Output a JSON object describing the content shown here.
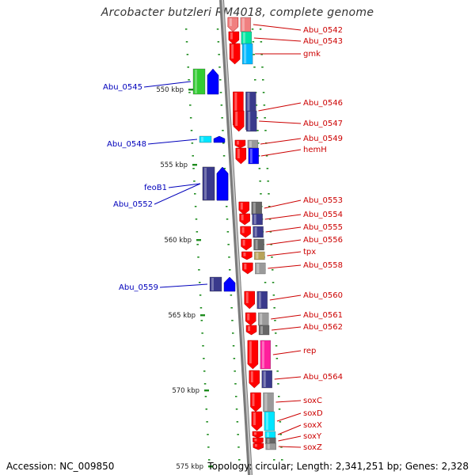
{
  "title": "Arcobacter butzleri RM4018, complete genome",
  "accession": "Accession: NC_009850",
  "topology": "Topology: circular; Length: 2,341,251 bp; Genes: 2,328",
  "colors": {
    "backbone": "#999999",
    "tick": "#1e8c1e",
    "label_right": "#cc0000",
    "label_left": "#0000bb",
    "cog_red": "#ff0000",
    "cog_blue": "#0000ff",
    "cog_navy": "#3a3a8c",
    "cog_green": "#33cc33",
    "cog_cyan": "#00e5ff",
    "cog_grey": "#9a9a9a",
    "cog_dark_grey": "#666666",
    "cog_magenta": "#ff1f9c",
    "cog_khaki": "#b8a35a",
    "cog_pink": "#f08080"
  },
  "kbp_labels": [
    "550 kbp",
    "555 kbp",
    "560 kbp",
    "565 kbp",
    "570 kbp",
    "575 kbp"
  ],
  "genes_right": [
    {
      "name": "Abu_0542",
      "red": "#f08080",
      "cog": "#f08080"
    },
    {
      "name": "Abu_0543",
      "red": "#ff0000",
      "cog": "#00e5a0"
    },
    {
      "name": "gmk",
      "red": "#ff0000",
      "cog": "#00b8ff"
    },
    {
      "name": "Abu_0546",
      "red": "#ff0000",
      "cog": "#3a3a8c"
    },
    {
      "name": "Abu_0547",
      "red": "#ff0000",
      "cog": "#3a3a8c"
    },
    {
      "name": "Abu_0549",
      "red": "#ff0000",
      "cog": "#9a9a9a"
    },
    {
      "name": "hemH",
      "red": "#ff0000",
      "cog": "#0000ff"
    },
    {
      "name": "Abu_0553",
      "red": "#ff0000",
      "cog": "#666666"
    },
    {
      "name": "Abu_0554",
      "red": "#ff0000",
      "cog": "#3a3a8c"
    },
    {
      "name": "Abu_0555",
      "red": "#ff0000",
      "cog": "#3a3a8c"
    },
    {
      "name": "Abu_0556",
      "red": "#ff0000",
      "cog": "#666666"
    },
    {
      "name": "tpx",
      "red": "#ff0000",
      "cog": "#b8a35a"
    },
    {
      "name": "Abu_0558",
      "red": "#ff0000",
      "cog": "#9a9a9a"
    },
    {
      "name": "Abu_0560",
      "red": "#ff0000",
      "cog": "#3a3a8c"
    },
    {
      "name": "Abu_0561",
      "red": "#ff0000",
      "cog": "#9a9a9a"
    },
    {
      "name": "Abu_0562",
      "red": "#ff0000",
      "cog": "#666666"
    },
    {
      "name": "rep",
      "red": "#ff0000",
      "cog": "#ff1f9c"
    },
    {
      "name": "Abu_0564",
      "red": "#ff0000",
      "cog": "#3a3a8c"
    },
    {
      "name": "soxC",
      "red": "#ff0000",
      "cog": "#9a9a9a"
    },
    {
      "name": "soxD",
      "red": "#ff0000",
      "cog": "#00e5ff"
    },
    {
      "name": "soxX",
      "red": "#ff0000",
      "cog": "#00e5ff"
    },
    {
      "name": "soxY",
      "red": "#ff0000",
      "cog": "#666666"
    },
    {
      "name": "soxZ",
      "red": "#ff0000",
      "cog": "#9a9a9a"
    }
  ],
  "genes_left": [
    {
      "name": "Abu_0545",
      "cog": "#33cc33"
    },
    {
      "name": "Abu_0548",
      "cog": "#00e5ff"
    },
    {
      "name": "feoB1",
      "cog": "#3a3a8c"
    },
    {
      "name": "Abu_0552",
      "cog": "#3a3a8c"
    },
    {
      "name": "Abu_0559",
      "cog": "#3a3a8c"
    }
  ]
}
